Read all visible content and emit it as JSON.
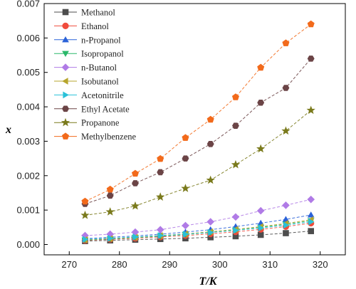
{
  "chart_data": {
    "type": "line",
    "xlabel": "T/K",
    "ylabel": "x",
    "xlim": [
      265,
      325
    ],
    "ylim": [
      -0.0003,
      0.007
    ],
    "xticks": [
      270,
      280,
      290,
      300,
      310,
      320
    ],
    "yticks": [
      0.0,
      0.001,
      0.002,
      0.003,
      0.004,
      0.005,
      0.006,
      0.007
    ],
    "xtick_labels": [
      "270",
      "280",
      "290",
      "300",
      "310",
      "320"
    ],
    "ytick_labels": [
      "0.000",
      "0.001",
      "0.002",
      "0.003",
      "0.004",
      "0.005",
      "0.006",
      "0.007"
    ],
    "grid": false,
    "legend_position": "top-left",
    "x": [
      273.15,
      278.15,
      283.15,
      288.15,
      293.15,
      298.15,
      303.15,
      308.15,
      313.15,
      318.15
    ],
    "series": [
      {
        "name": "Methanol",
        "color": "#4d4d4d",
        "marker": "square",
        "values": [
          0.0001,
          0.00012,
          0.00014,
          0.00016,
          0.00018,
          0.00021,
          0.00024,
          0.00028,
          0.00033,
          0.00039
        ]
      },
      {
        "name": "Ethanol",
        "color": "#f04b3c",
        "marker": "circle",
        "values": [
          0.00012,
          0.00015,
          0.00018,
          0.00022,
          0.00026,
          0.00031,
          0.00037,
          0.00044,
          0.00052,
          0.00062
        ]
      },
      {
        "name": "n-Propanol",
        "color": "#2a62d8",
        "marker": "triangle-up",
        "values": [
          0.00017,
          0.00021,
          0.00025,
          0.0003,
          0.00036,
          0.00043,
          0.00052,
          0.00062,
          0.00073,
          0.00086
        ]
      },
      {
        "name": "Isopropanol",
        "color": "#2ab86a",
        "marker": "triangle-down",
        "values": [
          0.00013,
          0.00016,
          0.0002,
          0.00024,
          0.00029,
          0.00035,
          0.00042,
          0.0005,
          0.00059,
          0.00069
        ]
      },
      {
        "name": "n-Butanol",
        "color": "#b07be6",
        "marker": "diamond",
        "values": [
          0.00026,
          0.0003,
          0.00036,
          0.00043,
          0.00055,
          0.00066,
          0.0008,
          0.00098,
          0.00114,
          0.00131
        ]
      },
      {
        "name": "Isobutanol",
        "color": "#b7a52c",
        "marker": "triangle-left",
        "values": [
          0.00014,
          0.00017,
          0.00021,
          0.00026,
          0.00031,
          0.00037,
          0.00044,
          0.00052,
          0.00061,
          0.00072
        ]
      },
      {
        "name": "Acetonitrile",
        "color": "#29c1d8",
        "marker": "triangle-right",
        "values": [
          0.00015,
          0.00018,
          0.00022,
          0.00026,
          0.0003,
          0.00035,
          0.00041,
          0.00048,
          0.00056,
          0.00066
        ]
      },
      {
        "name": "Ethyl Acetate",
        "color": "#6b4446",
        "marker": "hexagon",
        "values": [
          0.00118,
          0.00142,
          0.00178,
          0.0021,
          0.0025,
          0.00292,
          0.00345,
          0.00412,
          0.00455,
          0.0054
        ]
      },
      {
        "name": "Propanone",
        "color": "#7a7a1c",
        "marker": "star",
        "values": [
          0.00085,
          0.00095,
          0.00112,
          0.00138,
          0.00163,
          0.00187,
          0.00232,
          0.00278,
          0.0033,
          0.0039
        ]
      },
      {
        "name": "Methylbenzene",
        "color": "#f26a1b",
        "marker": "pentagon",
        "values": [
          0.00125,
          0.0016,
          0.00206,
          0.00249,
          0.0031,
          0.00363,
          0.00428,
          0.00514,
          0.00585,
          0.0064
        ]
      }
    ]
  }
}
